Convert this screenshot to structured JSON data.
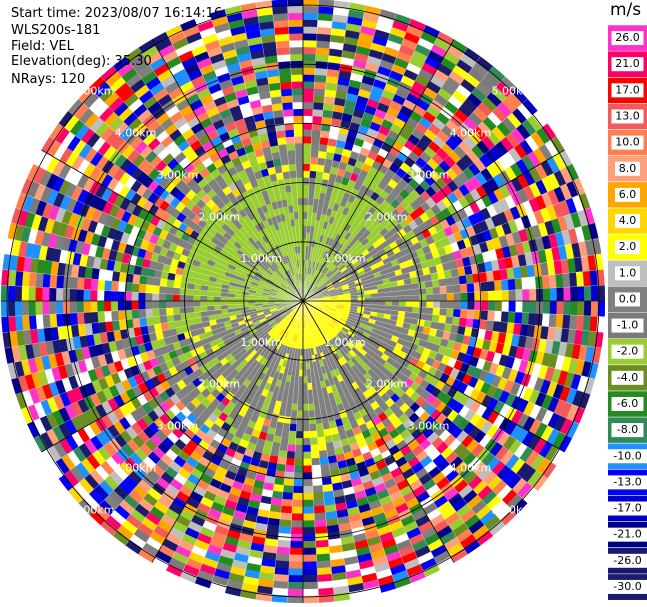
{
  "header": {
    "start_time": "Start time: 2023/08/07 16:14:16",
    "instrument": "WLS200s-181",
    "field": "Field: VEL",
    "elevation": "Elevation(deg): 35.30",
    "nrays": "NRays: 120"
  },
  "chart_data": {
    "type": "heatmap",
    "subtype": "polar-ppi",
    "field": "VEL",
    "units": "m/s",
    "n_rays": 120,
    "elevation_deg": 35.3,
    "range_ring_labels": [
      "1.00km",
      "2.00km",
      "3.00km",
      "4.00km",
      "5.00km"
    ],
    "colorbar": {
      "unit": "m/s",
      "ticks": [
        "26.0",
        "21.0",
        "17.0",
        "13.0",
        "10.0",
        "8.0",
        "6.0",
        "4.0",
        "2.0",
        "1.0",
        "0.0",
        "-1.0",
        "-2.0",
        "-4.0",
        "-6.0",
        "-8.0",
        "-10.0",
        "-13.0",
        "-17.0",
        "-21.0",
        "-26.0",
        "-30.0"
      ],
      "colors": [
        "#ff33cc",
        "#ff0066",
        "#ff0000",
        "#f45a5a",
        "#ff7f50",
        "#ffa07a",
        "#ffa500",
        "#ffd700",
        "#ffff00",
        "#bebebe",
        "#808080",
        "#7a7a7a",
        "#9acd32",
        "#6b8e23",
        "#228b22",
        "#2e8b57",
        "#1e90ff",
        "#0000ff",
        "#0000cd",
        "#00008b",
        "#191970",
        "#1c1c6b"
      ]
    }
  }
}
